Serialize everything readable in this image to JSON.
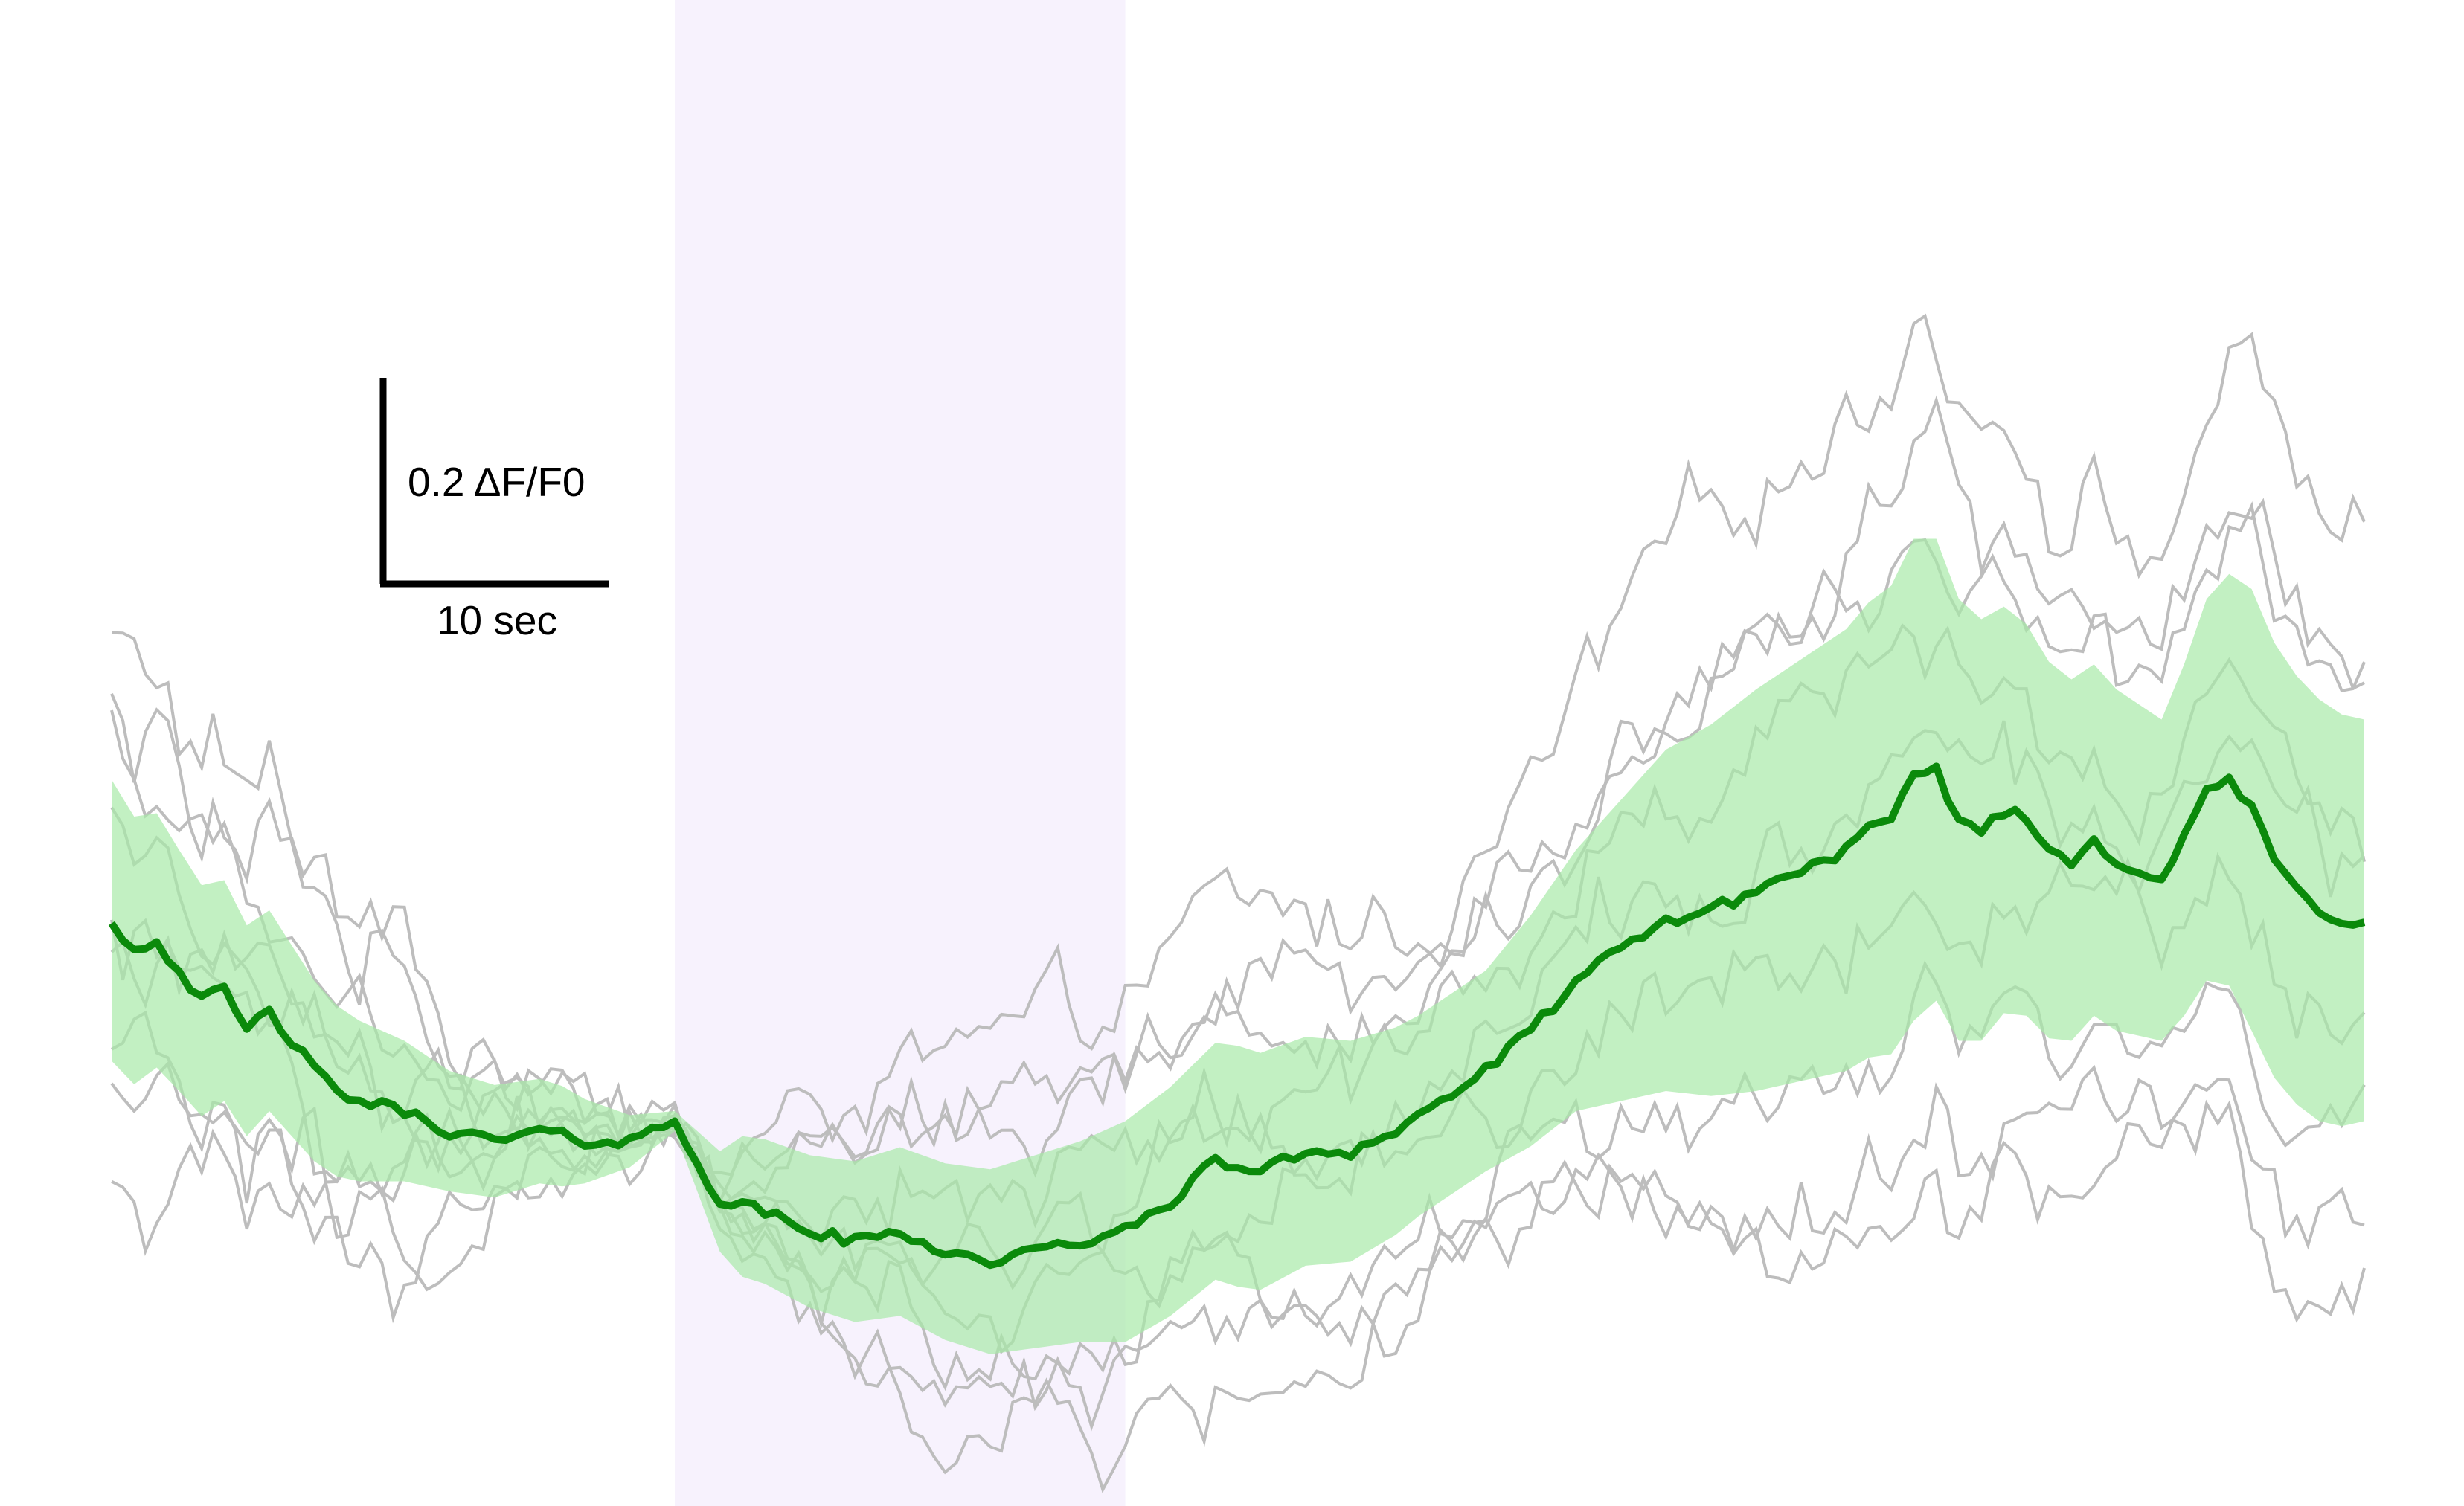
{
  "chart_data": {
    "type": "line",
    "title": "",
    "xlabel": "",
    "ylabel": "",
    "x_unit": "sec",
    "x_step": 0.5,
    "xlim": [
      -25,
      75
    ],
    "ylim": [
      -0.5,
      0.6
    ],
    "stimulus_window": {
      "start": 0,
      "end": 20,
      "color": "#f7f2fd"
    },
    "scale_bar": {
      "y_label": "0.2 ΔF/F0",
      "y_value": 0.2,
      "x_label": "10 sec",
      "x_value": 10,
      "color": "#000000"
    },
    "colors": {
      "mean": "#0b8a0b",
      "band": "#a8eaa8",
      "trials": "#bdbdbd"
    },
    "mean_anchors": [
      [
        -25,
        0.11
      ],
      [
        -24,
        0.08
      ],
      [
        -23,
        0.09
      ],
      [
        -22,
        0.06
      ],
      [
        -21,
        0.03
      ],
      [
        -20,
        0.04
      ],
      [
        -19,
        0.0
      ],
      [
        -18,
        0.02
      ],
      [
        -17,
        -0.01
      ],
      [
        -16,
        -0.04
      ],
      [
        -15,
        -0.06
      ],
      [
        -14,
        -0.07
      ],
      [
        -12,
        -0.08
      ],
      [
        -10,
        -0.1
      ],
      [
        -8,
        -0.11
      ],
      [
        -6,
        -0.1
      ],
      [
        -4,
        -0.11
      ],
      [
        -2,
        -0.11
      ],
      [
        0,
        -0.09
      ],
      [
        2,
        -0.17
      ],
      [
        4,
        -0.18
      ],
      [
        6,
        -0.2
      ],
      [
        8,
        -0.21
      ],
      [
        10,
        -0.2
      ],
      [
        12,
        -0.22
      ],
      [
        14,
        -0.23
      ],
      [
        16,
        -0.22
      ],
      [
        18,
        -0.21
      ],
      [
        20,
        -0.2
      ],
      [
        22,
        -0.17
      ],
      [
        24,
        -0.13
      ],
      [
        26,
        -0.14
      ],
      [
        28,
        -0.12
      ],
      [
        30,
        -0.12
      ],
      [
        32,
        -0.1
      ],
      [
        34,
        -0.07
      ],
      [
        36,
        -0.04
      ],
      [
        38,
        0.0
      ],
      [
        40,
        0.05
      ],
      [
        42,
        0.08
      ],
      [
        44,
        0.11
      ],
      [
        46,
        0.12
      ],
      [
        48,
        0.14
      ],
      [
        50,
        0.16
      ],
      [
        52,
        0.18
      ],
      [
        53,
        0.2
      ],
      [
        54,
        0.21
      ],
      [
        55,
        0.25
      ],
      [
        56,
        0.26
      ],
      [
        57,
        0.21
      ],
      [
        58,
        0.2
      ],
      [
        59,
        0.22
      ],
      [
        60,
        0.21
      ],
      [
        61,
        0.18
      ],
      [
        62,
        0.17
      ],
      [
        63,
        0.19
      ],
      [
        64,
        0.17
      ],
      [
        65,
        0.16
      ],
      [
        66,
        0.15
      ],
      [
        67,
        0.19
      ],
      [
        68,
        0.24
      ],
      [
        69,
        0.25
      ],
      [
        70,
        0.22
      ],
      [
        71,
        0.17
      ],
      [
        72,
        0.14
      ],
      [
        73,
        0.12
      ],
      [
        74,
        0.11
      ],
      [
        75,
        0.11
      ]
    ],
    "band_halfwidth_anchors": [
      [
        -25,
        0.14
      ],
      [
        -22,
        0.12
      ],
      [
        -18,
        0.1
      ],
      [
        -14,
        0.08
      ],
      [
        -10,
        0.06
      ],
      [
        -5,
        0.05
      ],
      [
        0,
        0.01
      ],
      [
        1,
        0.03
      ],
      [
        3,
        0.07
      ],
      [
        8,
        0.08
      ],
      [
        13,
        0.09
      ],
      [
        18,
        0.1
      ],
      [
        20,
        0.11
      ],
      [
        25,
        0.12
      ],
      [
        30,
        0.11
      ],
      [
        33,
        0.1
      ],
      [
        36,
        0.1
      ],
      [
        40,
        0.13
      ],
      [
        44,
        0.17
      ],
      [
        48,
        0.2
      ],
      [
        52,
        0.22
      ],
      [
        55,
        0.24
      ],
      [
        58,
        0.21
      ],
      [
        62,
        0.18
      ],
      [
        66,
        0.16
      ],
      [
        70,
        0.22
      ],
      [
        73,
        0.21
      ],
      [
        75,
        0.2
      ]
    ],
    "trial_count": 9
  }
}
